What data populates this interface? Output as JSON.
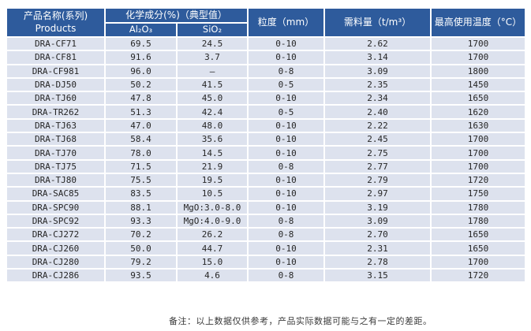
{
  "table": {
    "header": {
      "product_zh": "产品名称(系列)",
      "product_en": "Products",
      "chem_group": "化学成分(%)（典型值）",
      "al2o3": "Al₂O₃",
      "sio2": "SiO₂",
      "size": "粒度（mm）",
      "amount": "需料量（t/m³）",
      "temp": "最高使用温度（°C）"
    },
    "rows": [
      {
        "name": "DRA-CF71",
        "al2o3": "69.5",
        "sio2": "24.5",
        "size": "0-10",
        "amount": "2.62",
        "temp": "1700"
      },
      {
        "name": "DRA-CF81",
        "al2o3": "91.6",
        "sio2": "3.7",
        "size": "0-10",
        "amount": "3.14",
        "temp": "1700"
      },
      {
        "name": "DRA-CF981",
        "al2o3": "96.0",
        "sio2": "–",
        "size": "0-8",
        "amount": "3.09",
        "temp": "1800"
      },
      {
        "name": "DRA-DJ50",
        "al2o3": "50.2",
        "sio2": "41.5",
        "size": "0-5",
        "amount": "2.35",
        "temp": "1450"
      },
      {
        "name": "DRA-TJ60",
        "al2o3": "47.8",
        "sio2": "45.0",
        "size": "0-10",
        "amount": "2.34",
        "temp": "1650"
      },
      {
        "name": "DRA-TR262",
        "al2o3": "51.3",
        "sio2": "42.4",
        "size": "0-5",
        "amount": "2.40",
        "temp": "1620"
      },
      {
        "name": "DRA-TJ63",
        "al2o3": "47.0",
        "sio2": "48.0",
        "size": "0-10",
        "amount": "2.22",
        "temp": "1630"
      },
      {
        "name": "DRA-TJ68",
        "al2o3": "58.4",
        "sio2": "35.6",
        "size": "0-10",
        "amount": "2.45",
        "temp": "1700"
      },
      {
        "name": "DRA-TJ70",
        "al2o3": "78.0",
        "sio2": "14.5",
        "size": "0-10",
        "amount": "2.75",
        "temp": "1700"
      },
      {
        "name": "DRA-TJ75",
        "al2o3": "71.5",
        "sio2": "21.9",
        "size": "0-8",
        "amount": "2.77",
        "temp": "1700"
      },
      {
        "name": "DRA-TJ80",
        "al2o3": "75.5",
        "sio2": "19.5",
        "size": "0-10",
        "amount": "2.79",
        "temp": "1720"
      },
      {
        "name": "DRA-SAC85",
        "al2o3": "83.5",
        "sio2": "10.5",
        "size": "0-10",
        "amount": "2.97",
        "temp": "1750"
      },
      {
        "name": "DRA-SPC90",
        "al2o3": "88.1",
        "sio2": "MgO:3.0-8.0",
        "size": "0-10",
        "amount": "3.19",
        "temp": "1780"
      },
      {
        "name": "DRA-SPC92",
        "al2o3": "93.3",
        "sio2": "MgO:4.0-9.0",
        "size": "0-8",
        "amount": "3.09",
        "temp": "1780"
      },
      {
        "name": "DRA-CJ272",
        "al2o3": "70.2",
        "sio2": "26.2",
        "size": "0-8",
        "amount": "2.70",
        "temp": "1650"
      },
      {
        "name": "DRA-CJ260",
        "al2o3": "50.0",
        "sio2": "44.7",
        "size": "0-10",
        "amount": "2.31",
        "temp": "1650"
      },
      {
        "name": "DRA-CJ280",
        "al2o3": "79.2",
        "sio2": "15.0",
        "size": "0-10",
        "amount": "2.78",
        "temp": "1700"
      },
      {
        "name": "DRA-CJ286",
        "al2o3": "93.5",
        "sio2": "4.6",
        "size": "0-8",
        "amount": "3.15",
        "temp": "1720"
      }
    ]
  },
  "footnote": "备注：以上数据仅供参考，产品实际数据可能与之有一定的差距。",
  "colors": {
    "header_bg": "#2e5b9c",
    "row_bg": "#dde2ee",
    "grid_line": "#ffffff",
    "header_text": "#ffffff",
    "body_text": "#262626"
  }
}
